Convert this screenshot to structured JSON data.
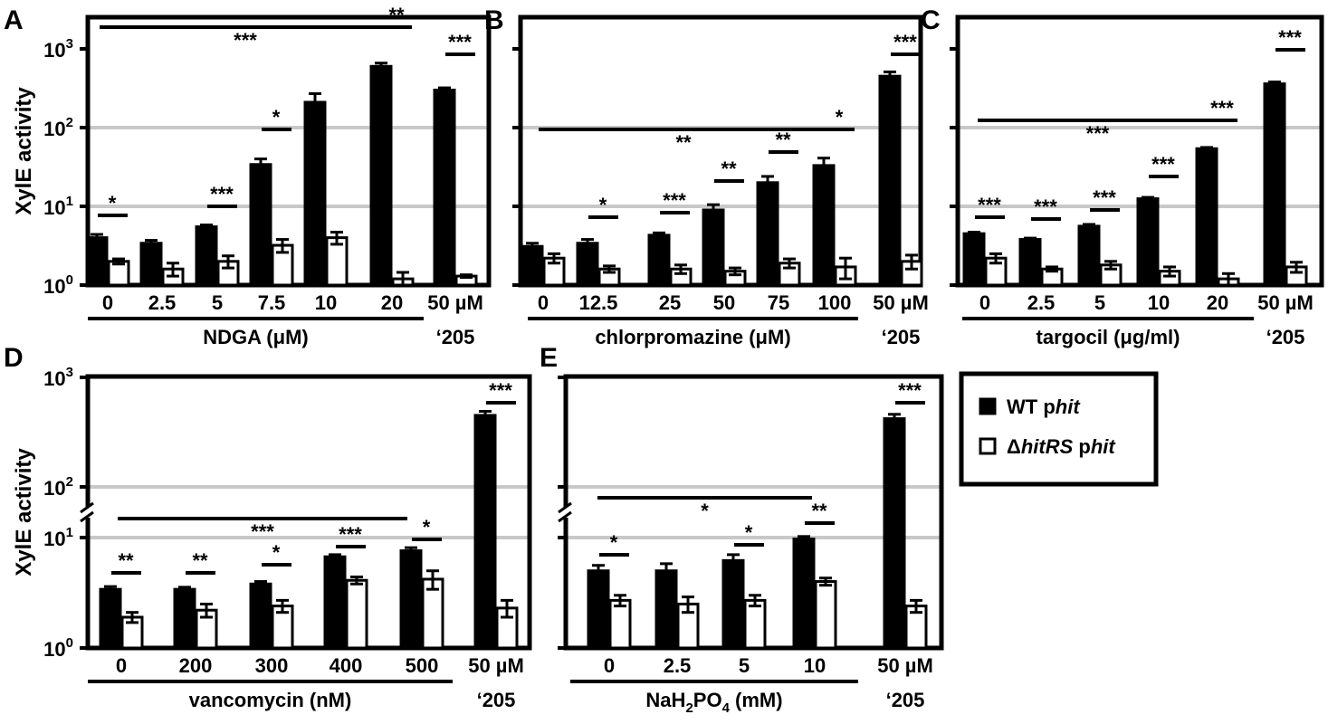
{
  "legend": {
    "placement": "right",
    "items": [
      {
        "fill": "#000000",
        "prefix": "WT p",
        "italic": "hit",
        "suffix": ""
      },
      {
        "fill": "#ffffff",
        "prefix": "Δ",
        "italic": "hitRS",
        "suffix": " p",
        "italic2": "hit"
      }
    ]
  },
  "series_colors": {
    "WT phit": "#000000",
    "ΔhitRS phit": "#ffffff",
    "gridline": "#c8c8c8"
  },
  "chart_data": [
    {
      "panel": "A",
      "type": "bar",
      "scale": "log",
      "ylabel": "XylE activity",
      "ylim": [
        1,
        1000
      ],
      "yticks": [
        "10^0",
        "10^1",
        "10^2",
        "10^3"
      ],
      "show_tick_labels": true,
      "axis_break": false,
      "categories": [
        "0",
        "2.5",
        "5",
        "7.5",
        "10",
        "20",
        "50 µM"
      ],
      "group_label": "NDGA (μM)",
      "extra_label": "‘205",
      "group_count": 6,
      "series": [
        {
          "name": "WT phit",
          "values": [
            4.0,
            3.4,
            5.5,
            34,
            210,
            600,
            300
          ],
          "errors": [
            0.4,
            0.3,
            0.3,
            6,
            60,
            60,
            20
          ]
        },
        {
          "name": "ΔhitRS phit",
          "values": [
            2.0,
            1.6,
            2.0,
            3.2,
            4.0,
            1.2,
            1.3
          ],
          "errors": [
            0.15,
            0.3,
            0.35,
            0.6,
            0.7,
            0.25,
            0.05
          ]
        }
      ],
      "pair_sig": [
        "*",
        "",
        "***",
        "*",
        "",
        "**",
        "***"
      ],
      "span_sig": {
        "from": 0,
        "to": 5,
        "label": "***"
      }
    },
    {
      "panel": "B",
      "type": "bar",
      "scale": "log",
      "ylabel": "",
      "ylim": [
        1,
        1000
      ],
      "yticks": [
        "10^0",
        "10^1",
        "10^2",
        "10^3"
      ],
      "show_tick_labels": false,
      "axis_break": false,
      "categories": [
        "0",
        "12.5",
        "25",
        "50",
        "75",
        "100",
        "50 µM"
      ],
      "group_label": "chlorpromazine (μM)",
      "extra_label": "‘205",
      "group_count": 6,
      "series": [
        {
          "name": "WT phit",
          "values": [
            3.1,
            3.4,
            4.3,
            9.0,
            20,
            33,
            450
          ],
          "errors": [
            0.3,
            0.4,
            0.3,
            1.5,
            4,
            8,
            60
          ]
        },
        {
          "name": "ΔhitRS phit",
          "values": [
            2.2,
            1.6,
            1.6,
            1.5,
            1.9,
            1.7,
            2.0
          ],
          "errors": [
            0.3,
            0.15,
            0.2,
            0.15,
            0.25,
            0.5,
            0.4
          ]
        }
      ],
      "pair_sig": [
        "",
        "*",
        "***",
        "**",
        "**",
        "*",
        "***"
      ],
      "span_sig": {
        "from": 0,
        "to": 5,
        "label": "**"
      }
    },
    {
      "panel": "C",
      "type": "bar",
      "scale": "log",
      "ylabel": "",
      "ylim": [
        1,
        1000
      ],
      "yticks": [
        "10^0",
        "10^1",
        "10^2",
        "10^3"
      ],
      "show_tick_labels": false,
      "axis_break": false,
      "categories": [
        "0",
        "2.5",
        "5",
        "10",
        "20",
        "50 µM"
      ],
      "group_label": "targocil (μg/ml)",
      "extra_label": "‘205",
      "group_count": 5,
      "series": [
        {
          "name": "WT phit",
          "values": [
            4.5,
            3.8,
            5.6,
            12.5,
            54,
            360
          ],
          "errors": [
            0.2,
            0.15,
            0.3,
            0.5,
            2,
            20
          ]
        },
        {
          "name": "ΔhitRS phit",
          "values": [
            2.2,
            1.6,
            1.8,
            1.5,
            1.2,
            1.7
          ],
          "errors": [
            0.3,
            0.1,
            0.2,
            0.2,
            0.2,
            0.25
          ]
        }
      ],
      "pair_sig": [
        "***",
        "***",
        "***",
        "***",
        "***",
        "***"
      ],
      "span_sig": {
        "from": 0,
        "to": 4,
        "label": "***"
      }
    },
    {
      "panel": "D",
      "type": "bar",
      "scale": "log-broken",
      "ylabel": "XylE activity",
      "ylim": [
        1,
        1000
      ],
      "yticks": [
        "10^0",
        "10^1",
        "10^2",
        "10^3"
      ],
      "show_tick_labels": true,
      "axis_break": true,
      "categories": [
        "0",
        "200",
        "300",
        "400",
        "500",
        "50 µM"
      ],
      "group_label": "vancomycin (nM)",
      "extra_label": "‘205",
      "group_count": 5,
      "series": [
        {
          "name": "WT phit",
          "values": [
            3.4,
            3.4,
            3.8,
            6.7,
            7.6,
            450
          ],
          "errors": [
            0.2,
            0.15,
            0.2,
            0.3,
            0.5,
            40
          ]
        },
        {
          "name": "ΔhitRS phit",
          "values": [
            1.9,
            2.2,
            2.4,
            4.1,
            4.2,
            2.3
          ],
          "errors": [
            0.2,
            0.3,
            0.3,
            0.3,
            0.8,
            0.4
          ]
        }
      ],
      "pair_sig": [
        "**",
        "**",
        "*",
        "***",
        "*",
        "***"
      ],
      "span_sig": {
        "from": 0,
        "to": 4,
        "label": "***"
      }
    },
    {
      "panel": "E",
      "type": "bar",
      "scale": "log-broken",
      "ylabel": "",
      "ylim": [
        1,
        1000
      ],
      "yticks": [
        "10^0",
        "10^1",
        "10^2",
        "10^3"
      ],
      "show_tick_labels": false,
      "axis_break": true,
      "categories": [
        "0",
        "2.5",
        "5",
        "10",
        "50 µM"
      ],
      "group_label_parts": [
        "NaH",
        "2",
        "PO",
        "4",
        " (mM)"
      ],
      "extra_label": "‘205",
      "group_count": 4,
      "series": [
        {
          "name": "WT phit",
          "values": [
            5.0,
            5.0,
            6.2,
            9.7,
            420
          ],
          "errors": [
            0.6,
            0.8,
            0.8,
            0.8,
            40
          ]
        },
        {
          "name": "ΔhitRS phit",
          "values": [
            2.7,
            2.5,
            2.7,
            4.0,
            2.4
          ],
          "errors": [
            0.3,
            0.4,
            0.3,
            0.3,
            0.3
          ]
        }
      ],
      "pair_sig": [
        "*",
        "",
        "*",
        "**",
        "***"
      ],
      "span_sig": {
        "from": 0,
        "to": 3,
        "label": "*"
      }
    }
  ]
}
